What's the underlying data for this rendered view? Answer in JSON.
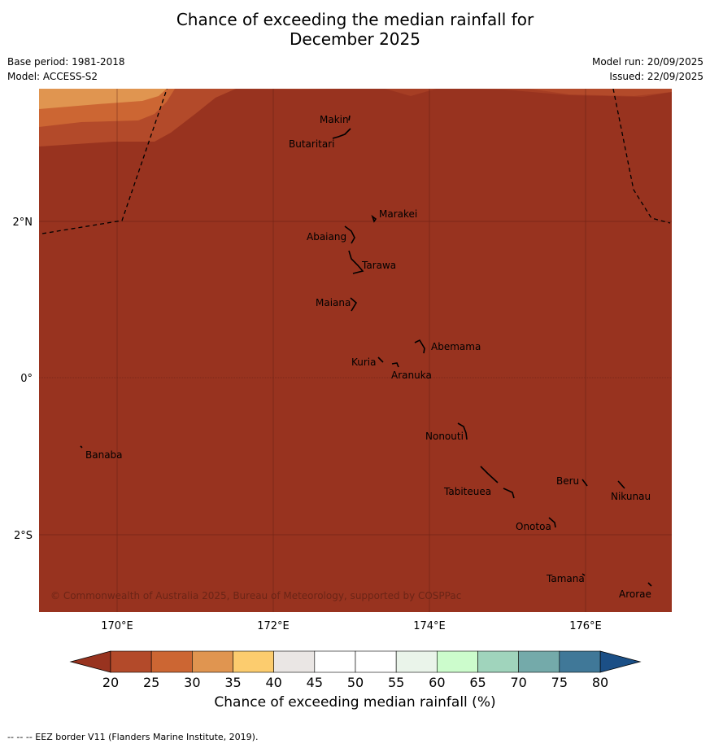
{
  "title_line1": "Chance of exceeding the median rainfall for",
  "title_line2": "December 2025",
  "meta": {
    "base_period": "Base period: 1981-2018",
    "model": "Model: ACCESS-S2",
    "model_run": "Model run: 20/09/2025",
    "issued": "Issued: 22/09/2025"
  },
  "axes": {
    "lat_labels": [
      "2°N",
      "0°",
      "2°S"
    ],
    "lon_labels": [
      "170°E",
      "172°E",
      "174°E",
      "176°E"
    ]
  },
  "places": {
    "makin": "Makin",
    "butaritari": "Butaritari",
    "marakei": "Marakei",
    "abaiang": "Abaiang",
    "tarawa": "Tarawa",
    "maiana": "Maiana",
    "abemama": "Abemama",
    "kuria": "Kuria",
    "aranuka": "Aranuka",
    "nonouti": "Nonouti",
    "banaba": "Banaba",
    "beru": "Beru",
    "nikunau": "Nikunau",
    "tabiteuea": "Tabiteuea",
    "onotoa": "Onotoa",
    "tamana": "Tamana",
    "arorae": "Arorae"
  },
  "copyright": "© Commonwealth of Australia 2025, Bureau of Meteorology, supported by COSPPac",
  "colorbar": {
    "label": "Chance of exceeding median rainfall (%)",
    "ticks": [
      "20",
      "25",
      "30",
      "35",
      "40",
      "45",
      "50",
      "55",
      "60",
      "65",
      "70",
      "75",
      "80"
    ],
    "colors": [
      "#b34a2a",
      "#cc6633",
      "#e09550",
      "#fccc6e",
      "#eae6e4",
      "#ffffff",
      "#ffffff",
      "#eaf4ea",
      "#ccfccc",
      "#a0d4bc",
      "#74aaaa",
      "#407898"
    ],
    "under_color": "#98331f",
    "over_color": "#1b4f86"
  },
  "footnote": "--  --  -- EEZ border V11 (Flanders Marine Institute, 2019)."
}
